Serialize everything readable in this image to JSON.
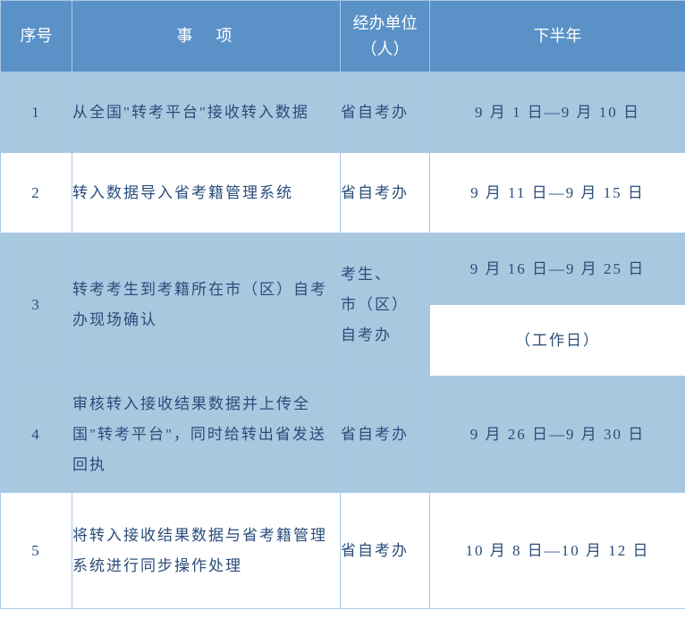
{
  "header": {
    "seq": "序号",
    "item": "事　项",
    "unit_line1": "经办单位",
    "unit_line2": "（人）",
    "period": "下半年"
  },
  "rows": [
    {
      "seq": "1",
      "item": "从全国\"转考平台\"接收转入数据",
      "unit": "省自考办",
      "period": "9 月 1 日—9 月 10 日"
    },
    {
      "seq": "2",
      "item": "转入数据导入省考籍管理系统",
      "unit": "省自考办",
      "period": "9 月 11 日—9 月 15 日"
    },
    {
      "seq": "3",
      "item": "转考考生到考籍所在市（区）自考办现场确认",
      "unit_line1": "考生、",
      "unit_line2": "市（区）",
      "unit_line3": "自考办",
      "period_top": "9 月 16 日—9 月 25 日",
      "period_bot": "（工作日）"
    },
    {
      "seq": "4",
      "item": "审核转入接收结果数据并上传全国\"转考平台\"，同时给转出省发送回执",
      "unit": "省自考办",
      "period": "9 月 26 日—9 月 30 日"
    },
    {
      "seq": "5",
      "item": "将转入接收结果数据与省考籍管理系统进行同步操作处理",
      "unit": "省自考办",
      "period": "10 月 8 日—10 月 12 日"
    }
  ],
  "colors": {
    "header_bg": "#5a91c7",
    "header_text": "#ffffff",
    "row_odd_bg": "#a8c8e0",
    "row_even_bg": "#ffffff",
    "text_color": "#2a4d7a",
    "border_color": "#a8c8e8"
  }
}
